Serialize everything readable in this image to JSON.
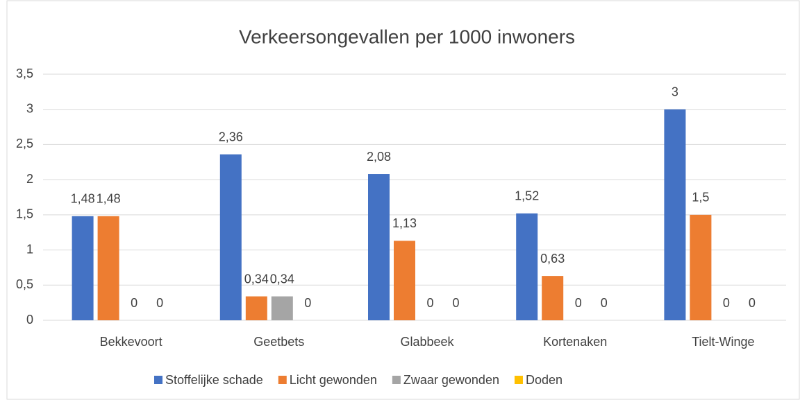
{
  "chart_data": {
    "type": "bar",
    "title": "Verkeersongevallen per 1000 inwoners",
    "categories": [
      "Bekkevoort",
      "Geetbets",
      "Glabbeek",
      "Kortenaken",
      "Tielt-Winge"
    ],
    "series": [
      {
        "name": "Stoffelijke schade",
        "color": "#4472c4",
        "values": [
          1.48,
          2.36,
          2.08,
          1.52,
          3
        ],
        "value_labels": [
          "1,48",
          "2,36",
          "2,08",
          "1,52",
          "3"
        ]
      },
      {
        "name": "Licht gewonden",
        "color": "#ed7d31",
        "values": [
          1.48,
          0.34,
          1.13,
          0.63,
          1.5
        ],
        "value_labels": [
          "1,48",
          "0,34",
          "1,13",
          "0,63",
          "1,5"
        ]
      },
      {
        "name": "Zwaar gewonden",
        "color": "#a5a5a5",
        "values": [
          0,
          0.34,
          0,
          0,
          0
        ],
        "value_labels": [
          "0",
          "0,34",
          "0",
          "0",
          "0"
        ]
      },
      {
        "name": "Doden",
        "color": "#ffc000",
        "values": [
          0,
          0,
          0,
          0,
          0
        ],
        "value_labels": [
          "0",
          "0",
          "0",
          "0",
          "0"
        ]
      }
    ],
    "ylim": [
      0,
      3.5
    ],
    "yticks": [
      0,
      {
        "value": 0.5,
        "label": "0,5"
      },
      1,
      {
        "value": 1.5,
        "label": "1,5"
      },
      2,
      {
        "value": 2.5,
        "label": "2,5"
      },
      3,
      {
        "value": 3.5,
        "label": "3,5"
      }
    ],
    "grid": true,
    "legend": "bottom"
  }
}
